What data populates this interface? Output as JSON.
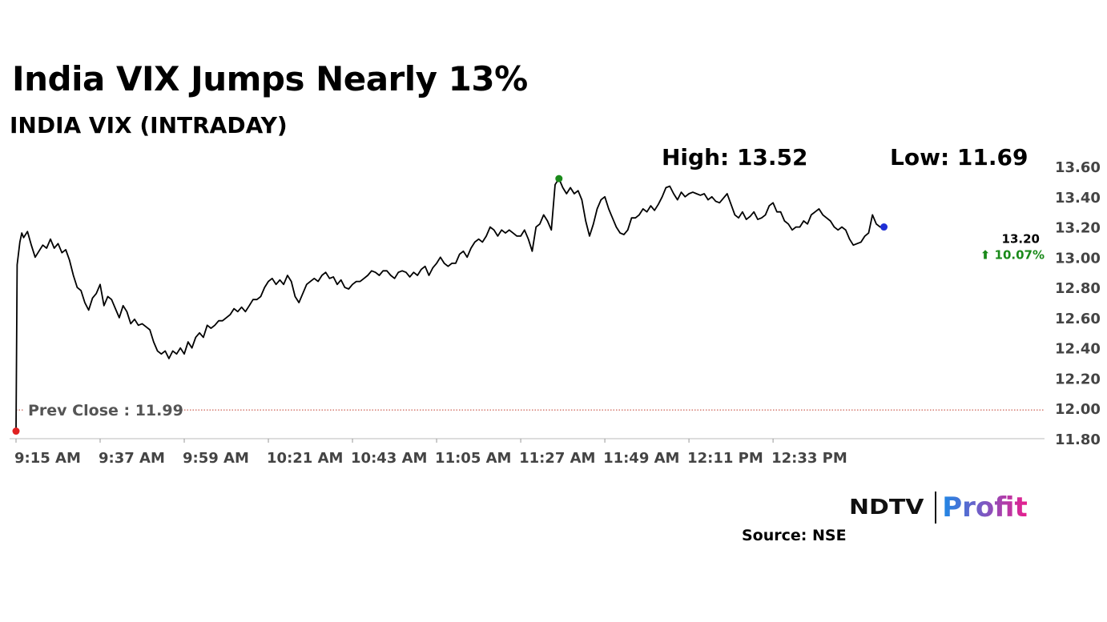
{
  "header": {
    "title": "India VIX Jumps Nearly 13%",
    "subtitle": "INDIA VIX (INTRADAY)",
    "high_label": "High: 13.52",
    "low_label": "Low: 11.69"
  },
  "footer": {
    "logo_ndtv": "NDTV",
    "logo_profit": "Profit",
    "source": "Source: NSE"
  },
  "colors": {
    "line": "#000000",
    "prev_close": "#c0392b",
    "high_marker": "#1a8a1a",
    "low_marker": "#e02020",
    "last_marker": "#1f2fd6",
    "change_up": "#1a8a1a"
  },
  "chart_data": {
    "type": "line",
    "title": "INDIA VIX (INTRADAY)",
    "x_tick_labels": [
      "9:15 AM",
      "9:37 AM",
      "9:59 AM",
      "10:21 AM",
      "10:43 AM",
      "11:05 AM",
      "11:27 AM",
      "11:49 AM",
      "12:11 PM",
      "12:33 PM"
    ],
    "x_start_minutes": 555,
    "x_end_minutes": 824,
    "y_ticks": [
      "11.80",
      "12.00",
      "12.20",
      "12.40",
      "12.60",
      "12.80",
      "13.00",
      "13.20",
      "13.40",
      "13.60"
    ],
    "ylim": [
      11.8,
      13.6
    ],
    "grid": false,
    "series": [
      {
        "points": [
          [
            555,
            11.85
          ],
          [
            555.3,
            12.95
          ],
          [
            556,
            13.1
          ],
          [
            556.5,
            13.16
          ],
          [
            557,
            13.13
          ],
          [
            558,
            13.17
          ],
          [
            559,
            13.08
          ],
          [
            560,
            13.0
          ],
          [
            561,
            13.04
          ],
          [
            562,
            13.08
          ],
          [
            563,
            13.06
          ],
          [
            564,
            13.12
          ],
          [
            565,
            13.06
          ],
          [
            566,
            13.09
          ],
          [
            567,
            13.03
          ],
          [
            568,
            13.05
          ],
          [
            569,
            12.98
          ],
          [
            570,
            12.88
          ],
          [
            571,
            12.8
          ],
          [
            572,
            12.78
          ],
          [
            573,
            12.7
          ],
          [
            574,
            12.65
          ],
          [
            575,
            12.73
          ],
          [
            576,
            12.76
          ],
          [
            577,
            12.82
          ],
          [
            578,
            12.68
          ],
          [
            579,
            12.74
          ],
          [
            580,
            12.72
          ],
          [
            581,
            12.66
          ],
          [
            582,
            12.6
          ],
          [
            583,
            12.68
          ],
          [
            584,
            12.64
          ],
          [
            585,
            12.56
          ],
          [
            586,
            12.59
          ],
          [
            587,
            12.55
          ],
          [
            588,
            12.56
          ],
          [
            589,
            12.54
          ],
          [
            590,
            12.52
          ],
          [
            591,
            12.44
          ],
          [
            592,
            12.38
          ],
          [
            593,
            12.36
          ],
          [
            594,
            12.38
          ],
          [
            595,
            12.33
          ],
          [
            596,
            12.38
          ],
          [
            597,
            12.36
          ],
          [
            598,
            12.4
          ],
          [
            599,
            12.36
          ],
          [
            600,
            12.44
          ],
          [
            601,
            12.4
          ],
          [
            602,
            12.47
          ],
          [
            603,
            12.5
          ],
          [
            604,
            12.47
          ],
          [
            605,
            12.55
          ],
          [
            606,
            12.53
          ],
          [
            607,
            12.55
          ],
          [
            608,
            12.58
          ],
          [
            609,
            12.58
          ],
          [
            610,
            12.6
          ],
          [
            611,
            12.62
          ],
          [
            612,
            12.66
          ],
          [
            613,
            12.64
          ],
          [
            614,
            12.67
          ],
          [
            615,
            12.64
          ],
          [
            616,
            12.68
          ],
          [
            617,
            12.72
          ],
          [
            618,
            12.72
          ],
          [
            619,
            12.74
          ],
          [
            620,
            12.8
          ],
          [
            621,
            12.84
          ],
          [
            622,
            12.86
          ],
          [
            623,
            12.82
          ],
          [
            624,
            12.85
          ],
          [
            625,
            12.82
          ],
          [
            626,
            12.88
          ],
          [
            627,
            12.84
          ],
          [
            628,
            12.74
          ],
          [
            629,
            12.7
          ],
          [
            630,
            12.76
          ],
          [
            631,
            12.82
          ],
          [
            632,
            12.84
          ],
          [
            633,
            12.86
          ],
          [
            634,
            12.84
          ],
          [
            635,
            12.88
          ],
          [
            636,
            12.9
          ],
          [
            637,
            12.86
          ],
          [
            638,
            12.87
          ],
          [
            639,
            12.82
          ],
          [
            640,
            12.85
          ],
          [
            641,
            12.8
          ],
          [
            642,
            12.79
          ],
          [
            643,
            12.82
          ],
          [
            644,
            12.84
          ],
          [
            645,
            12.84
          ],
          [
            646,
            12.86
          ],
          [
            647,
            12.88
          ],
          [
            648,
            12.91
          ],
          [
            649,
            12.9
          ],
          [
            650,
            12.88
          ],
          [
            651,
            12.91
          ],
          [
            652,
            12.91
          ],
          [
            653,
            12.88
          ],
          [
            654,
            12.86
          ],
          [
            655,
            12.9
          ],
          [
            656,
            12.91
          ],
          [
            657,
            12.9
          ],
          [
            658,
            12.87
          ],
          [
            659,
            12.9
          ],
          [
            660,
            12.88
          ],
          [
            661,
            12.92
          ],
          [
            662,
            12.94
          ],
          [
            663,
            12.88
          ],
          [
            664,
            12.93
          ],
          [
            665,
            12.96
          ],
          [
            666,
            13.0
          ],
          [
            667,
            12.96
          ],
          [
            668,
            12.94
          ],
          [
            669,
            12.96
          ],
          [
            670,
            12.96
          ],
          [
            671,
            13.02
          ],
          [
            672,
            13.04
          ],
          [
            673,
            13.0
          ],
          [
            674,
            13.06
          ],
          [
            675,
            13.1
          ],
          [
            676,
            13.12
          ],
          [
            677,
            13.1
          ],
          [
            678,
            13.14
          ],
          [
            679,
            13.2
          ],
          [
            680,
            13.18
          ],
          [
            681,
            13.14
          ],
          [
            682,
            13.18
          ],
          [
            683,
            13.16
          ],
          [
            684,
            13.18
          ],
          [
            685,
            13.16
          ],
          [
            686,
            13.14
          ],
          [
            687,
            13.14
          ],
          [
            688,
            13.18
          ],
          [
            689,
            13.12
          ],
          [
            690,
            13.04
          ],
          [
            691,
            13.2
          ],
          [
            692,
            13.22
          ],
          [
            693,
            13.28
          ],
          [
            694,
            13.24
          ],
          [
            695,
            13.18
          ],
          [
            696,
            13.48
          ],
          [
            697,
            13.52
          ],
          [
            698,
            13.46
          ],
          [
            699,
            13.42
          ],
          [
            700,
            13.46
          ],
          [
            701,
            13.42
          ],
          [
            702,
            13.44
          ],
          [
            703,
            13.38
          ],
          [
            704,
            13.24
          ],
          [
            705,
            13.14
          ],
          [
            706,
            13.22
          ],
          [
            707,
            13.32
          ],
          [
            708,
            13.38
          ],
          [
            709,
            13.4
          ],
          [
            710,
            13.32
          ],
          [
            711,
            13.26
          ],
          [
            712,
            13.2
          ],
          [
            713,
            13.16
          ],
          [
            714,
            13.15
          ],
          [
            715,
            13.18
          ],
          [
            716,
            13.26
          ],
          [
            717,
            13.26
          ],
          [
            718,
            13.28
          ],
          [
            719,
            13.32
          ],
          [
            720,
            13.3
          ],
          [
            721,
            13.34
          ],
          [
            722,
            13.31
          ],
          [
            723,
            13.35
          ],
          [
            724,
            13.4
          ],
          [
            725,
            13.46
          ],
          [
            726,
            13.47
          ],
          [
            727,
            13.42
          ],
          [
            728,
            13.38
          ],
          [
            729,
            13.43
          ],
          [
            730,
            13.4
          ],
          [
            731,
            13.42
          ],
          [
            732,
            13.43
          ],
          [
            733,
            13.42
          ],
          [
            734,
            13.41
          ],
          [
            735,
            13.42
          ],
          [
            736,
            13.38
          ],
          [
            737,
            13.4
          ],
          [
            738,
            13.37
          ],
          [
            739,
            13.36
          ],
          [
            740,
            13.39
          ],
          [
            741,
            13.42
          ],
          [
            742,
            13.35
          ],
          [
            743,
            13.28
          ],
          [
            744,
            13.26
          ],
          [
            745,
            13.3
          ],
          [
            746,
            13.25
          ],
          [
            747,
            13.27
          ],
          [
            748,
            13.3
          ],
          [
            749,
            13.25
          ],
          [
            750,
            13.26
          ],
          [
            751,
            13.28
          ],
          [
            752,
            13.34
          ],
          [
            753,
            13.36
          ],
          [
            754,
            13.3
          ],
          [
            755,
            13.3
          ],
          [
            756,
            13.24
          ],
          [
            757,
            13.22
          ],
          [
            758,
            13.18
          ],
          [
            759,
            13.2
          ],
          [
            760,
            13.2
          ],
          [
            761,
            13.24
          ],
          [
            762,
            13.22
          ],
          [
            763,
            13.28
          ],
          [
            764,
            13.3
          ],
          [
            765,
            13.32
          ],
          [
            766,
            13.28
          ],
          [
            767,
            13.26
          ],
          [
            768,
            13.24
          ],
          [
            769,
            13.2
          ],
          [
            770,
            13.18
          ],
          [
            771,
            13.2
          ],
          [
            772,
            13.18
          ],
          [
            773,
            13.12
          ],
          [
            774,
            13.08
          ],
          [
            776,
            13.1
          ],
          [
            777,
            13.14
          ],
          [
            778,
            13.16
          ],
          [
            779,
            13.28
          ],
          [
            780,
            13.22
          ],
          [
            781,
            13.2
          ],
          [
            782,
            13.2
          ]
        ]
      }
    ],
    "prev_close": {
      "label": "Prev Close : 11.99",
      "value": 11.99
    },
    "high_point": {
      "x": 697,
      "y": 13.52
    },
    "low_point": {
      "x": 555,
      "y": 11.85
    },
    "last_point": {
      "x": 782,
      "y": 13.2
    },
    "last_value_label": "13.20",
    "change_label": "⬆ 10.07%"
  }
}
